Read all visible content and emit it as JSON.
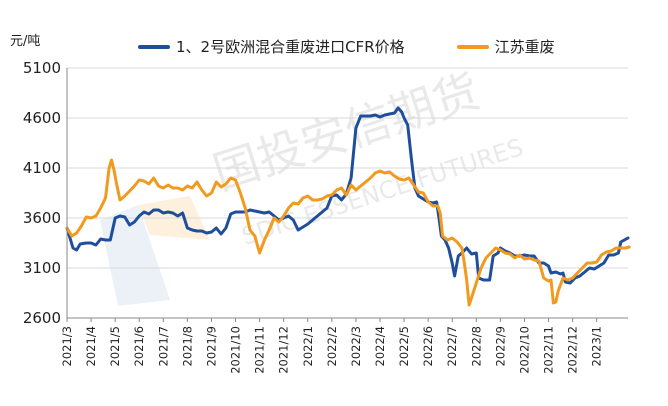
{
  "chart_data": {
    "type": "line",
    "yunit": "元/吨",
    "ylim": [
      2600,
      5100
    ],
    "yticks": [
      2600,
      3100,
      3600,
      4100,
      4600,
      5100
    ],
    "xticks": [
      "2021/3",
      "2021/4",
      "2021/5",
      "2021/6",
      "2021/7",
      "2021/8",
      "2021/9",
      "2021/10",
      "2021/11",
      "2021/12",
      "2022/1",
      "2022/2",
      "2022/3",
      "2022/4",
      "2022/5",
      "2022/6",
      "2022/7",
      "2022/8",
      "2022/9",
      "2022/10",
      "2022/11",
      "2022/12",
      "2023/1"
    ],
    "grid": "horizontal",
    "legend_position": "top",
    "watermark": {
      "cn": "国投安信期货",
      "en": "SDIC ESSENCE FUTURES"
    },
    "series": [
      {
        "name": "1、2号欧洲混合重废进口CFR价格",
        "color": "#1f4e9c",
        "points": [
          [
            0,
            3500
          ],
          [
            0.1,
            3420
          ],
          [
            0.25,
            3300
          ],
          [
            0.4,
            3280
          ],
          [
            0.55,
            3340
          ],
          [
            0.8,
            3350
          ],
          [
            1.0,
            3350
          ],
          [
            1.2,
            3330
          ],
          [
            1.4,
            3390
          ],
          [
            1.6,
            3380
          ],
          [
            1.8,
            3380
          ],
          [
            2.0,
            3600
          ],
          [
            2.2,
            3620
          ],
          [
            2.4,
            3610
          ],
          [
            2.6,
            3530
          ],
          [
            2.8,
            3560
          ],
          [
            3.0,
            3620
          ],
          [
            3.2,
            3660
          ],
          [
            3.4,
            3640
          ],
          [
            3.6,
            3680
          ],
          [
            3.8,
            3680
          ],
          [
            4.0,
            3650
          ],
          [
            4.2,
            3660
          ],
          [
            4.4,
            3650
          ],
          [
            4.6,
            3620
          ],
          [
            4.8,
            3650
          ],
          [
            5.0,
            3500
          ],
          [
            5.2,
            3480
          ],
          [
            5.4,
            3470
          ],
          [
            5.6,
            3470
          ],
          [
            5.8,
            3450
          ],
          [
            6.0,
            3460
          ],
          [
            6.2,
            3500
          ],
          [
            6.4,
            3440
          ],
          [
            6.6,
            3500
          ],
          [
            6.8,
            3640
          ],
          [
            7.0,
            3660
          ],
          [
            7.2,
            3660
          ],
          [
            7.4,
            3660
          ],
          [
            7.6,
            3680
          ],
          [
            7.8,
            3670
          ],
          [
            8.0,
            3660
          ],
          [
            8.2,
            3650
          ],
          [
            8.4,
            3660
          ],
          [
            8.6,
            3620
          ],
          [
            8.8,
            3580
          ],
          [
            9.0,
            3600
          ],
          [
            9.2,
            3620
          ],
          [
            9.4,
            3580
          ],
          [
            9.6,
            3480
          ],
          [
            9.8,
            3510
          ],
          [
            10.0,
            3540
          ],
          [
            10.2,
            3580
          ],
          [
            10.4,
            3620
          ],
          [
            10.6,
            3660
          ],
          [
            10.8,
            3700
          ],
          [
            11.0,
            3820
          ],
          [
            11.2,
            3830
          ],
          [
            11.4,
            3780
          ],
          [
            11.6,
            3840
          ],
          [
            11.8,
            4000
          ],
          [
            12.0,
            4500
          ],
          [
            12.2,
            4620
          ],
          [
            12.4,
            4620
          ],
          [
            12.6,
            4620
          ],
          [
            12.8,
            4630
          ],
          [
            13.0,
            4610
          ],
          [
            13.2,
            4630
          ],
          [
            13.4,
            4640
          ],
          [
            13.6,
            4650
          ],
          [
            13.75,
            4700
          ],
          [
            13.9,
            4660
          ],
          [
            14.0,
            4600
          ],
          [
            14.15,
            4530
          ],
          [
            14.3,
            4200
          ],
          [
            14.45,
            3900
          ],
          [
            14.6,
            3820
          ],
          [
            14.8,
            3790
          ],
          [
            15.0,
            3760
          ],
          [
            15.2,
            3750
          ],
          [
            15.35,
            3760
          ],
          [
            15.45,
            3600
          ],
          [
            15.55,
            3420
          ],
          [
            15.7,
            3380
          ],
          [
            15.85,
            3300
          ],
          [
            16.0,
            3150
          ],
          [
            16.1,
            3020
          ],
          [
            16.25,
            3220
          ],
          [
            16.4,
            3250
          ],
          [
            16.6,
            3300
          ],
          [
            16.8,
            3240
          ],
          [
            17.0,
            3250
          ],
          [
            17.1,
            3000
          ],
          [
            17.3,
            2980
          ],
          [
            17.55,
            2980
          ],
          [
            17.7,
            3220
          ],
          [
            17.9,
            3250
          ],
          [
            18.0,
            3300
          ],
          [
            18.2,
            3270
          ],
          [
            18.4,
            3250
          ],
          [
            18.6,
            3220
          ],
          [
            18.8,
            3220
          ],
          [
            19.0,
            3230
          ],
          [
            19.2,
            3220
          ],
          [
            19.4,
            3220
          ],
          [
            19.6,
            3150
          ],
          [
            19.8,
            3150
          ],
          [
            20.0,
            3120
          ],
          [
            20.1,
            3050
          ],
          [
            20.3,
            3060
          ],
          [
            20.5,
            3040
          ],
          [
            20.6,
            3050
          ],
          [
            20.7,
            2960
          ],
          [
            20.9,
            2950
          ],
          [
            21.1,
            3000
          ],
          [
            21.3,
            3020
          ],
          [
            21.5,
            3060
          ],
          [
            21.7,
            3100
          ],
          [
            21.9,
            3090
          ],
          [
            22.1,
            3120
          ],
          [
            22.3,
            3150
          ],
          [
            22.5,
            3230
          ],
          [
            22.7,
            3230
          ],
          [
            22.9,
            3250
          ],
          [
            23.0,
            3360
          ],
          [
            23.15,
            3380
          ],
          [
            23.3,
            3400
          ]
        ]
      },
      {
        "name": "江苏重废",
        "color": "#f29a1e",
        "points": [
          [
            0,
            3500
          ],
          [
            0.2,
            3420
          ],
          [
            0.4,
            3450
          ],
          [
            0.6,
            3520
          ],
          [
            0.8,
            3610
          ],
          [
            1.0,
            3600
          ],
          [
            1.2,
            3620
          ],
          [
            1.4,
            3700
          ],
          [
            1.6,
            3800
          ],
          [
            1.75,
            4100
          ],
          [
            1.85,
            4180
          ],
          [
            1.95,
            4080
          ],
          [
            2.05,
            3950
          ],
          [
            2.2,
            3780
          ],
          [
            2.4,
            3820
          ],
          [
            2.6,
            3870
          ],
          [
            2.8,
            3920
          ],
          [
            3.0,
            3980
          ],
          [
            3.2,
            3970
          ],
          [
            3.4,
            3940
          ],
          [
            3.6,
            4000
          ],
          [
            3.8,
            3920
          ],
          [
            4.0,
            3900
          ],
          [
            4.2,
            3930
          ],
          [
            4.4,
            3900
          ],
          [
            4.6,
            3900
          ],
          [
            4.8,
            3880
          ],
          [
            5.0,
            3920
          ],
          [
            5.2,
            3900
          ],
          [
            5.4,
            3960
          ],
          [
            5.6,
            3880
          ],
          [
            5.8,
            3820
          ],
          [
            6.0,
            3850
          ],
          [
            6.2,
            3960
          ],
          [
            6.4,
            3910
          ],
          [
            6.6,
            3940
          ],
          [
            6.8,
            4000
          ],
          [
            7.0,
            3980
          ],
          [
            7.2,
            3850
          ],
          [
            7.4,
            3700
          ],
          [
            7.6,
            3480
          ],
          [
            7.8,
            3420
          ],
          [
            8.0,
            3250
          ],
          [
            8.2,
            3380
          ],
          [
            8.4,
            3480
          ],
          [
            8.6,
            3600
          ],
          [
            8.8,
            3560
          ],
          [
            9.0,
            3620
          ],
          [
            9.2,
            3700
          ],
          [
            9.4,
            3750
          ],
          [
            9.6,
            3740
          ],
          [
            9.8,
            3800
          ],
          [
            10.0,
            3820
          ],
          [
            10.2,
            3780
          ],
          [
            10.4,
            3780
          ],
          [
            10.6,
            3790
          ],
          [
            10.8,
            3820
          ],
          [
            11.0,
            3830
          ],
          [
            11.2,
            3880
          ],
          [
            11.4,
            3900
          ],
          [
            11.6,
            3830
          ],
          [
            11.8,
            3930
          ],
          [
            12.0,
            3880
          ],
          [
            12.2,
            3920
          ],
          [
            12.4,
            3960
          ],
          [
            12.6,
            4000
          ],
          [
            12.8,
            4050
          ],
          [
            13.0,
            4070
          ],
          [
            13.2,
            4050
          ],
          [
            13.4,
            4060
          ],
          [
            13.6,
            4020
          ],
          [
            13.8,
            3990
          ],
          [
            14.0,
            3980
          ],
          [
            14.2,
            4000
          ],
          [
            14.4,
            3930
          ],
          [
            14.6,
            3860
          ],
          [
            14.8,
            3850
          ],
          [
            15.0,
            3760
          ],
          [
            15.2,
            3720
          ],
          [
            15.4,
            3720
          ],
          [
            15.5,
            3650
          ],
          [
            15.6,
            3420
          ],
          [
            15.8,
            3380
          ],
          [
            16.0,
            3400
          ],
          [
            16.2,
            3360
          ],
          [
            16.4,
            3300
          ],
          [
            16.5,
            3150
          ],
          [
            16.6,
            2980
          ],
          [
            16.7,
            2730
          ],
          [
            16.8,
            2800
          ],
          [
            17.0,
            2950
          ],
          [
            17.2,
            3100
          ],
          [
            17.4,
            3200
          ],
          [
            17.6,
            3250
          ],
          [
            17.8,
            3300
          ],
          [
            18.0,
            3280
          ],
          [
            18.2,
            3250
          ],
          [
            18.4,
            3240
          ],
          [
            18.6,
            3200
          ],
          [
            18.8,
            3230
          ],
          [
            19.0,
            3190
          ],
          [
            19.2,
            3200
          ],
          [
            19.4,
            3180
          ],
          [
            19.6,
            3170
          ],
          [
            19.8,
            3000
          ],
          [
            20.0,
            2970
          ],
          [
            20.1,
            2980
          ],
          [
            20.2,
            2750
          ],
          [
            20.3,
            2760
          ],
          [
            20.4,
            2870
          ],
          [
            20.6,
            3000
          ],
          [
            20.8,
            2980
          ],
          [
            21.0,
            3000
          ],
          [
            21.2,
            3050
          ],
          [
            21.4,
            3100
          ],
          [
            21.6,
            3150
          ],
          [
            21.8,
            3150
          ],
          [
            22.0,
            3160
          ],
          [
            22.2,
            3230
          ],
          [
            22.4,
            3260
          ],
          [
            22.6,
            3270
          ],
          [
            22.8,
            3300
          ],
          [
            23.0,
            3300
          ],
          [
            23.2,
            3300
          ],
          [
            23.35,
            3310
          ]
        ]
      }
    ]
  }
}
